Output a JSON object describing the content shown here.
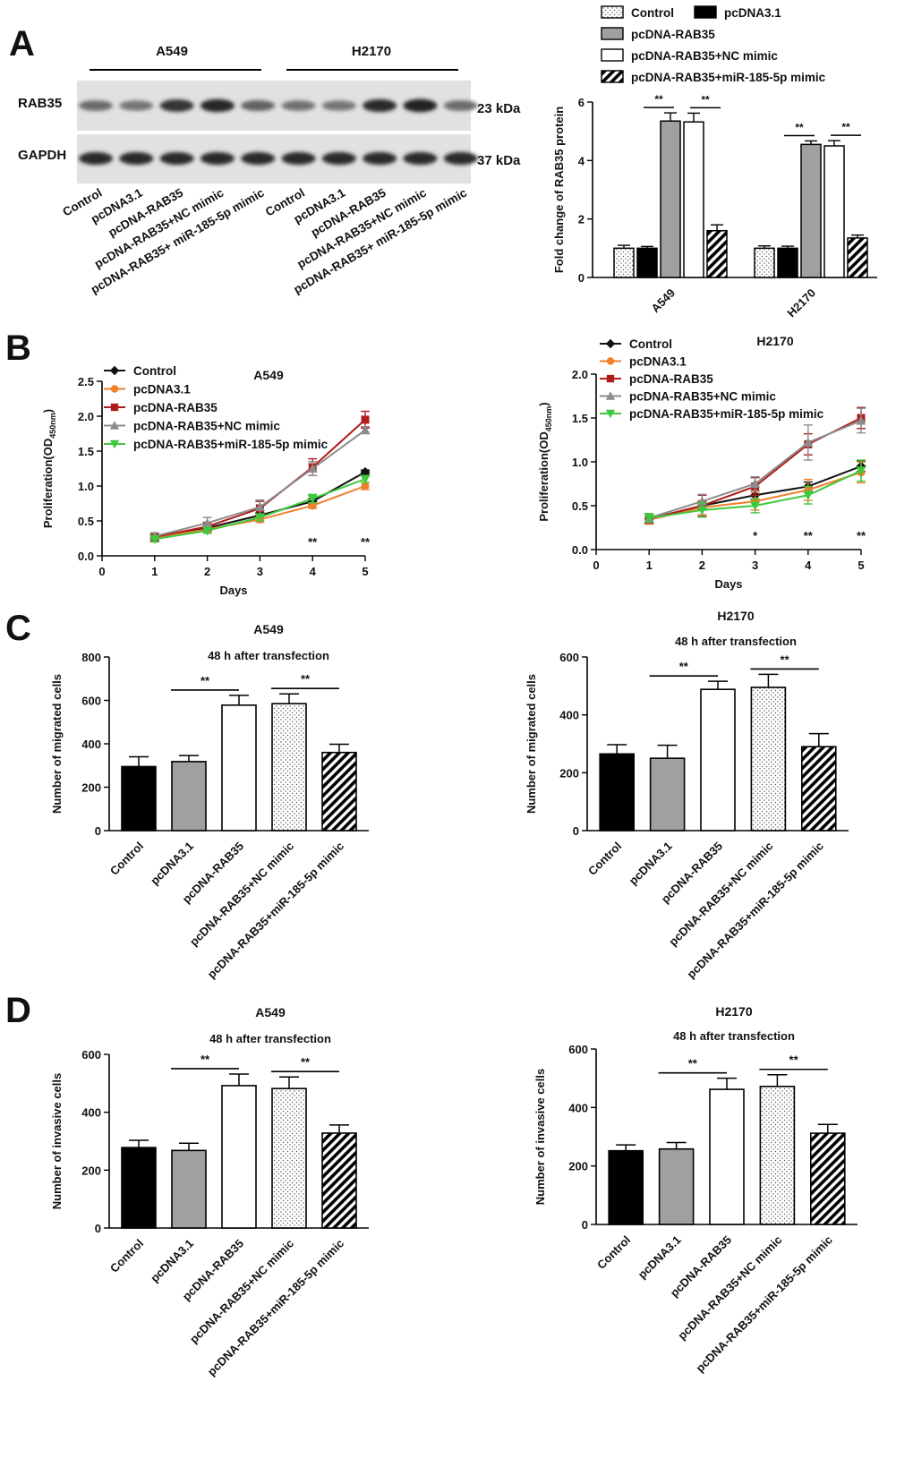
{
  "panels": {
    "a": "A",
    "b": "B",
    "c": "C",
    "d": "D"
  },
  "colors": {
    "black": "#000000",
    "gray": "#a0a0a0",
    "white": "#ffffff",
    "control_line": "#111111",
    "pcdna_line": "#f07f2a",
    "rab35_line": "#b01c1c",
    "nc_line": "#8c8c8c",
    "mir_line": "#3ec83e"
  },
  "western_blot": {
    "cell_lines": [
      "A549",
      "H2170"
    ],
    "rows": [
      {
        "label": "RAB35",
        "size": "23 kDa",
        "intensities": [
          0.55,
          0.5,
          0.85,
          0.92,
          0.6,
          0.52,
          0.5,
          0.9,
          0.95,
          0.55
        ]
      },
      {
        "label": "GAPDH",
        "size": "37 kDa",
        "intensities": [
          0.9,
          0.9,
          0.9,
          0.9,
          0.9,
          0.9,
          0.9,
          0.9,
          0.9,
          0.9
        ]
      }
    ],
    "lanes": [
      "Control",
      "pcDNA3.1",
      "pcDNA-RAB35",
      "pcDNA-RAB35+NC mimic",
      "pcDNA-RAB35+ miR-185-5p mimic",
      "Control",
      "pcDNA3.1",
      "pcDNA-RAB35",
      "pcDNA-RAB35+NC mimic",
      "pcDNA-RAB35+ miR-185-5p mimic"
    ]
  },
  "chart_data": [
    {
      "id": "A-bar",
      "type": "bar",
      "title": "",
      "ylabel": "Fold change of RAB35 protein",
      "xlabel": "",
      "ylim": [
        0,
        6
      ],
      "yticks": [
        0,
        2,
        4,
        6
      ],
      "categories": [
        "A549",
        "H2170"
      ],
      "legend": [
        "Control",
        "pcDNA3.1",
        "pcDNA-RAB35",
        "pcDNA-RAB35+NC mimic",
        "pcDNA-RAB35+miR-185-5p mimic"
      ],
      "series": [
        {
          "name": "Control",
          "values": [
            1.0,
            1.0
          ],
          "errors": [
            0.1,
            0.08
          ]
        },
        {
          "name": "pcDNA3.1",
          "values": [
            1.0,
            1.0
          ],
          "errors": [
            0.06,
            0.07
          ]
        },
        {
          "name": "pcDNA-RAB35",
          "values": [
            5.35,
            4.55
          ],
          "errors": [
            0.28,
            0.12
          ]
        },
        {
          "name": "pcDNA-RAB35+NC mimic",
          "values": [
            5.32,
            4.5
          ],
          "errors": [
            0.3,
            0.18
          ]
        },
        {
          "name": "pcDNA-RAB35+miR-185-5p mimic",
          "values": [
            1.6,
            1.35
          ],
          "errors": [
            0.2,
            0.1
          ]
        }
      ],
      "sig_label": "**"
    },
    {
      "id": "B-A549",
      "type": "line",
      "title": "A549",
      "xlabel": "Days",
      "ylabel_main": "Proliferation(OD",
      "ylabel_sub": "450nm",
      "ylabel_end": ")",
      "x": [
        1,
        2,
        3,
        4,
        5
      ],
      "xlim": [
        0,
        5
      ],
      "xticks": [
        0,
        1,
        2,
        3,
        4,
        5
      ],
      "ylim": [
        0,
        2.5
      ],
      "yticks": [
        "0.0",
        "0.5",
        "1.0",
        "1.5",
        "2.0",
        "2.5"
      ],
      "series": [
        {
          "name": "Control",
          "values": [
            0.25,
            0.4,
            0.58,
            0.78,
            1.2
          ],
          "errors": [
            0.04,
            0.04,
            0.04,
            0.04,
            0.03
          ]
        },
        {
          "name": "pcDNA3.1",
          "values": [
            0.26,
            0.38,
            0.52,
            0.72,
            1.0
          ],
          "errors": [
            0.04,
            0.04,
            0.04,
            0.04,
            0.05
          ]
        },
        {
          "name": "pcDNA-RAB35",
          "values": [
            0.27,
            0.42,
            0.68,
            1.27,
            1.95
          ],
          "errors": [
            0.05,
            0.06,
            0.1,
            0.12,
            0.12
          ]
        },
        {
          "name": "pcDNA-RAB35+NC mimic",
          "values": [
            0.28,
            0.47,
            0.7,
            1.25,
            1.8
          ],
          "errors": [
            0.05,
            0.08,
            0.1,
            0.1,
            0.05
          ]
        },
        {
          "name": "pcDNA-RAB35+miR-185-5p mimic",
          "values": [
            0.24,
            0.36,
            0.55,
            0.82,
            1.1
          ],
          "errors": [
            0.04,
            0.04,
            0.05,
            0.06,
            0.05
          ]
        }
      ],
      "annotations": [
        {
          "x": 4,
          "text": "**"
        },
        {
          "x": 5,
          "text": "**"
        }
      ]
    },
    {
      "id": "B-H2170",
      "type": "line",
      "title": "H2170",
      "xlabel": "Days",
      "ylabel_main": "Proliferation(OD",
      "ylabel_sub": "450nm",
      "ylabel_end": ")",
      "x": [
        1,
        2,
        3,
        4,
        5
      ],
      "xlim": [
        0,
        5
      ],
      "xticks": [
        0,
        1,
        2,
        3,
        4,
        5
      ],
      "ylim": [
        0,
        2.0
      ],
      "yticks": [
        "0.0",
        "0.5",
        "1.0",
        "1.5",
        "2.0"
      ],
      "series": [
        {
          "name": "Control",
          "values": [
            0.35,
            0.5,
            0.62,
            0.72,
            0.95
          ],
          "errors": [
            0.05,
            0.05,
            0.05,
            0.05,
            0.06
          ]
        },
        {
          "name": "pcDNA3.1",
          "values": [
            0.34,
            0.48,
            0.55,
            0.68,
            0.88
          ],
          "errors": [
            0.05,
            0.08,
            0.1,
            0.12,
            0.12
          ]
        },
        {
          "name": "pcDNA-RAB35",
          "values": [
            0.35,
            0.5,
            0.72,
            1.2,
            1.5
          ],
          "errors": [
            0.05,
            0.12,
            0.1,
            0.12,
            0.12
          ]
        },
        {
          "name": "pcDNA-RAB35+NC mimic",
          "values": [
            0.36,
            0.55,
            0.75,
            1.22,
            1.47
          ],
          "errors": [
            0.05,
            0.08,
            0.08,
            0.2,
            0.14
          ]
        },
        {
          "name": "pcDNA-RAB35+miR-185-5p mimic",
          "values": [
            0.36,
            0.45,
            0.5,
            0.62,
            0.9
          ],
          "errors": [
            0.05,
            0.08,
            0.08,
            0.1,
            0.12
          ]
        }
      ],
      "annotations": [
        {
          "x": 3,
          "text": "*"
        },
        {
          "x": 4,
          "text": "**"
        },
        {
          "x": 5,
          "text": "**"
        }
      ]
    },
    {
      "id": "C-A549",
      "type": "bar",
      "title": "A549",
      "subtitle": "48 h after transfection",
      "ylabel": "Number of migrated cells",
      "ylim": [
        0,
        800
      ],
      "yticks": [
        0,
        200,
        400,
        600,
        800
      ],
      "categories": [
        "Control",
        "pcDNA3.1",
        "pcDNA-RAB35",
        "pcDNA-RAB35+NC mimic",
        "pcDNA-RAB35+miR-185-5p mimic"
      ],
      "values": [
        295,
        318,
        578,
        585,
        360
      ],
      "errors": [
        45,
        28,
        45,
        45,
        38
      ],
      "sig_label": "**"
    },
    {
      "id": "C-H2170",
      "type": "bar",
      "title": "H2170",
      "subtitle": "48 h after transfection",
      "ylabel": "Number of migrated cells",
      "ylim": [
        0,
        600
      ],
      "yticks": [
        0,
        200,
        400,
        600
      ],
      "categories": [
        "Control",
        "pcDNA3.1",
        "pcDNA-RAB35",
        "pcDNA-RAB35+NC mimic",
        "pcDNA-RAB35+miR-185-5p mimic"
      ],
      "values": [
        265,
        250,
        488,
        495,
        290
      ],
      "errors": [
        32,
        45,
        28,
        45,
        45
      ],
      "sig_label": "**"
    },
    {
      "id": "D-A549",
      "type": "bar",
      "title": "A549",
      "subtitle": "48 h after transfection",
      "ylabel": "Number of invasive cells",
      "ylim": [
        0,
        600
      ],
      "yticks": [
        0,
        200,
        400,
        600
      ],
      "categories": [
        "Control",
        "pcDNA3.1",
        "pcDNA-RAB35",
        "pcDNA-RAB35+NC mimic",
        "pcDNA-RAB35+miR-185-5p mimic"
      ],
      "values": [
        278,
        268,
        492,
        482,
        328
      ],
      "errors": [
        25,
        25,
        40,
        40,
        28
      ],
      "sig_label": "**"
    },
    {
      "id": "D-H2170",
      "type": "bar",
      "title": "H2170",
      "subtitle": "48 h after transfection",
      "ylabel": "Number of invasive cells",
      "ylim": [
        0,
        600
      ],
      "yticks": [
        0,
        200,
        400,
        600
      ],
      "categories": [
        "Control",
        "pcDNA3.1",
        "pcDNA-RAB35",
        "pcDNA-RAB35+NC mimic",
        "pcDNA-RAB35+miR-185-5p mimic"
      ],
      "values": [
        252,
        258,
        462,
        472,
        312
      ],
      "errors": [
        20,
        22,
        38,
        40,
        30
      ],
      "sig_label": "**"
    }
  ]
}
